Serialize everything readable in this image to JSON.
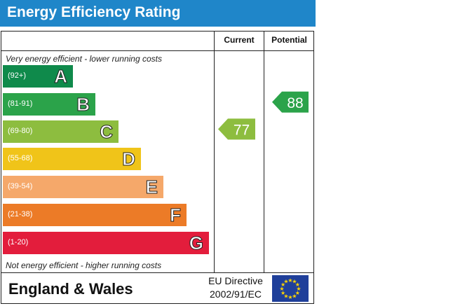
{
  "title": "Energy Efficiency Rating",
  "columns": {
    "current": "Current",
    "potential": "Potential"
  },
  "notes": {
    "top": "Very energy efficient - lower running costs",
    "bottom": "Not energy efficient - higher running costs"
  },
  "bands": [
    {
      "range": "(92+)",
      "letter": "A",
      "color": "#0f8a4b"
    },
    {
      "range": "(81-91)",
      "letter": "B",
      "color": "#2ba34a"
    },
    {
      "range": "(69-80)",
      "letter": "C",
      "color": "#8dbd3f"
    },
    {
      "range": "(55-68)",
      "letter": "D",
      "color": "#f0c419"
    },
    {
      "range": "(39-54)",
      "letter": "E",
      "color": "#f5a86a"
    },
    {
      "range": "(21-38)",
      "letter": "F",
      "color": "#ec7b27"
    },
    {
      "range": "(1-20)",
      "letter": "G",
      "color": "#e31d3c"
    }
  ],
  "chart_data": {
    "type": "bar",
    "title": "Energy Efficiency Rating",
    "categories": [
      "A (92+)",
      "B (81-91)",
      "C (69-80)",
      "D (55-68)",
      "E (39-54)",
      "F (21-38)",
      "G (1-20)"
    ],
    "current": {
      "value": 77,
      "color": "#8dbd3f"
    },
    "potential": {
      "value": 88,
      "color": "#2ba34a"
    }
  },
  "footer": {
    "region": "England & Wales",
    "directive_line1": "EU Directive",
    "directive_line2": "2002/91/EC",
    "flag_icon": "eu-flag-icon"
  }
}
